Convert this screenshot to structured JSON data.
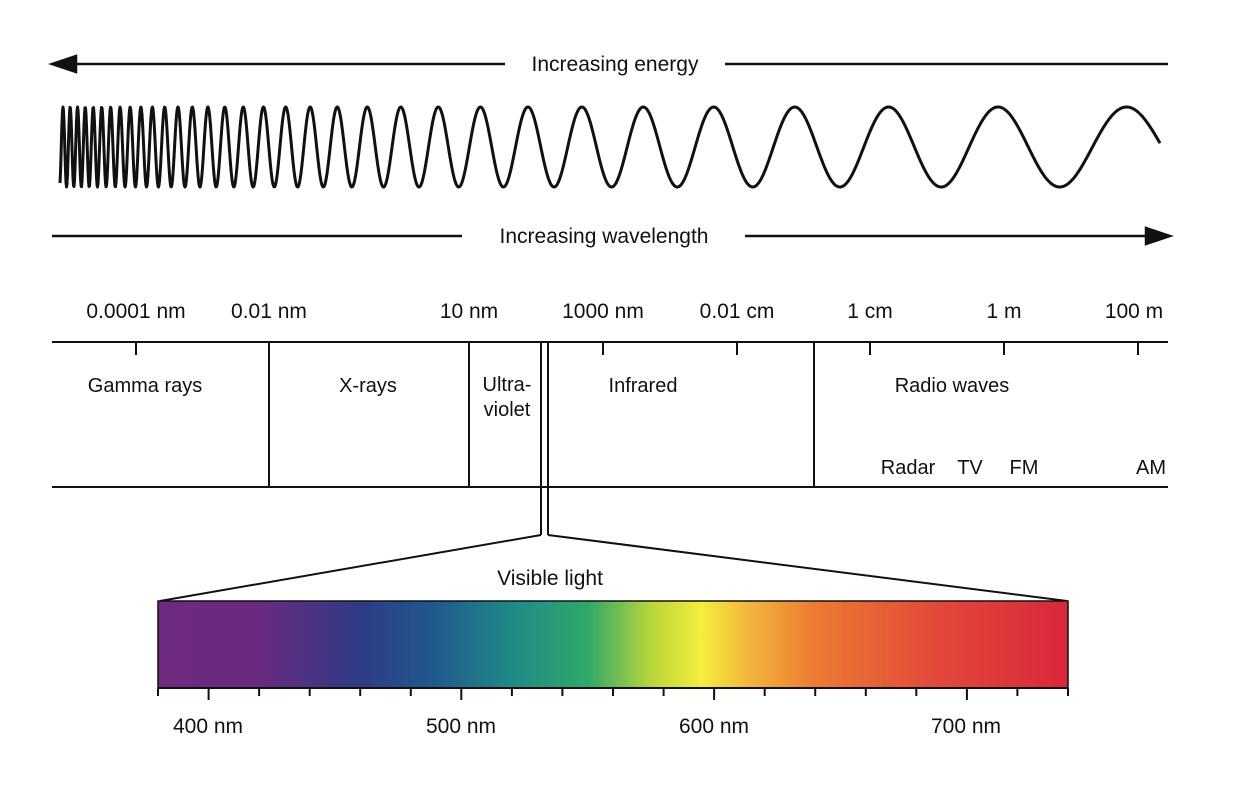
{
  "colors": {
    "ink": "#111111",
    "spectrum_stops": [
      {
        "nm": 380,
        "color": "#6e2a7e"
      },
      {
        "nm": 420,
        "color": "#6a2a7f"
      },
      {
        "nm": 460,
        "color": "#2e3a86"
      },
      {
        "nm": 490,
        "color": "#1f5a8e"
      },
      {
        "nm": 520,
        "color": "#1f8a86"
      },
      {
        "nm": 550,
        "color": "#2fa86a"
      },
      {
        "nm": 575,
        "color": "#b8d63a"
      },
      {
        "nm": 595,
        "color": "#f5ee3c"
      },
      {
        "nm": 615,
        "color": "#f3b23c"
      },
      {
        "nm": 640,
        "color": "#ec7a32"
      },
      {
        "nm": 690,
        "color": "#e2473a"
      },
      {
        "nm": 740,
        "color": "#d9273a"
      }
    ]
  },
  "energy_label": "Increasing energy",
  "wavelength_label": "Increasing wavelength",
  "scale_labels": [
    "0.0001 nm",
    "0.01 nm",
    "10 nm",
    "1000 nm",
    "0.01 cm",
    "1 cm",
    "1 m",
    "100 m"
  ],
  "bands": {
    "gamma": "Gamma rays",
    "xray": "X-rays",
    "uv_line1": "Ultra-",
    "uv_line2": "violet",
    "infrared": "Infrared",
    "radio": "Radio waves",
    "radar": "Radar",
    "tv": "TV",
    "fm": "FM",
    "am": "AM"
  },
  "visible_label": "Visible light",
  "visible_axis": {
    "min_nm": 380,
    "max_nm": 740,
    "minor_step_nm": 20,
    "labels": [
      "400 nm",
      "500 nm",
      "600 nm",
      "700 nm"
    ]
  }
}
